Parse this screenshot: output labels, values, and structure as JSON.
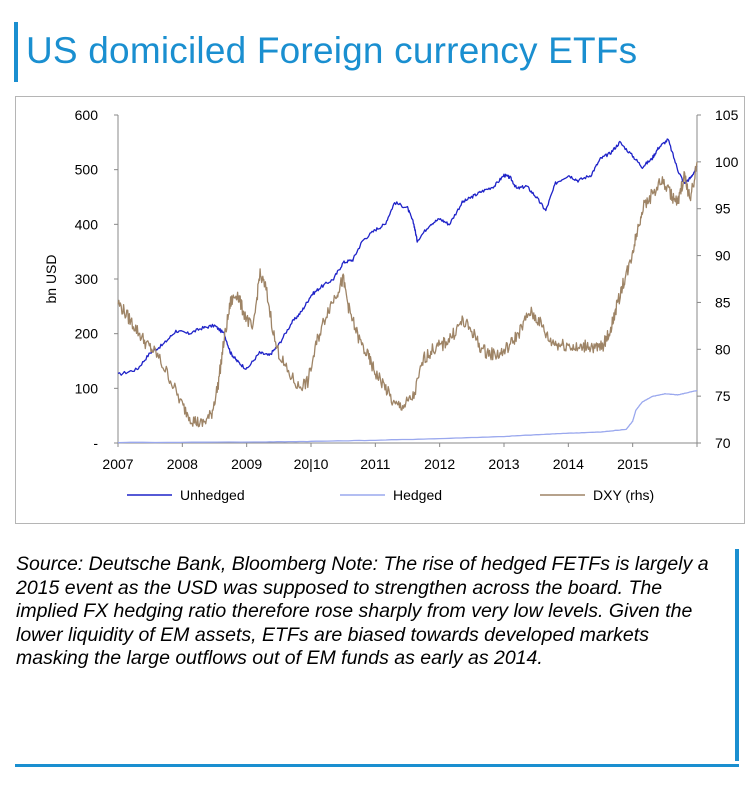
{
  "title": "US domiciled Foreign currency ETFs",
  "note": "Source: Deutsche Bank, Bloomberg Note: The rise of hedged FETFs is largely a 2015 event as the USD was supposed to strengthen across the board. The implied FX hedging ratio therefore rose sharply from very low levels. Given the lower liquidity of EM assets, ETFs are biased towards developed markets masking the large outflows out of EM funds as early as 2014.",
  "colors": {
    "accent": "#1a8fd0",
    "unhedged": "#1f23c8",
    "hedged": "#9aa8ee",
    "dxy": "#9e8466"
  },
  "chart_data": {
    "type": "line",
    "ylabel": "bn USD",
    "y_ticks": [
      "-",
      "100",
      "200",
      "300",
      "400",
      "500",
      "600"
    ],
    "ylim": [
      0,
      600
    ],
    "y2_ticks": [
      "70",
      "75",
      "80",
      "85",
      "90",
      "95",
      "100",
      "105"
    ],
    "y2lim": [
      70,
      105
    ],
    "x_ticks": [
      "2007",
      "2008",
      "2009",
      "20|10",
      "2011",
      "2012",
      "2013",
      "2014",
      "2015"
    ],
    "xlim": [
      2007.0,
      2016.0
    ],
    "legend": [
      "Unhedged",
      "Hedged",
      "DXY (rhs)"
    ],
    "legend_position": "bottom",
    "grid": false,
    "series": [
      {
        "name": "Unhedged",
        "axis": "left",
        "x": [
          2007.0,
          2007.3,
          2007.5,
          2007.7,
          2007.9,
          2008.1,
          2008.3,
          2008.5,
          2008.65,
          2008.75,
          2008.85,
          2009.0,
          2009.2,
          2009.35,
          2009.5,
          2009.7,
          2009.85,
          2010.0,
          2010.15,
          2010.35,
          2010.5,
          2010.65,
          2010.8,
          2011.0,
          2011.15,
          2011.3,
          2011.5,
          2011.6,
          2011.65,
          2011.85,
          2012.0,
          2012.15,
          2012.35,
          2012.5,
          2012.65,
          2012.85,
          2013.0,
          2013.1,
          2013.2,
          2013.35,
          2013.5,
          2013.65,
          2013.8,
          2014.0,
          2014.15,
          2014.35,
          2014.5,
          2014.65,
          2014.8,
          2015.0,
          2015.15,
          2015.3,
          2015.4,
          2015.55,
          2015.7,
          2015.8,
          2015.9,
          2016.0
        ],
        "y": [
          125,
          135,
          165,
          180,
          205,
          200,
          210,
          215,
          200,
          165,
          150,
          135,
          165,
          160,
          180,
          220,
          240,
          270,
          285,
          300,
          330,
          335,
          370,
          390,
          400,
          440,
          430,
          400,
          370,
          400,
          410,
          400,
          440,
          450,
          460,
          470,
          490,
          485,
          465,
          470,
          450,
          425,
          475,
          490,
          480,
          490,
          520,
          530,
          550,
          525,
          505,
          520,
          540,
          555,
          500,
          475,
          485,
          505
        ]
      },
      {
        "name": "Hedged",
        "axis": "left",
        "x": [
          2007.0,
          2009.3,
          2010.0,
          2011.0,
          2012.0,
          2013.0,
          2013.5,
          2014.0,
          2014.5,
          2014.9,
          2015.0,
          2015.05,
          2015.15,
          2015.3,
          2015.5,
          2015.7,
          2015.85,
          2016.0
        ],
        "y": [
          1,
          2,
          3,
          5,
          8,
          12,
          15,
          18,
          20,
          25,
          40,
          60,
          75,
          85,
          90,
          88,
          92,
          96
        ]
      },
      {
        "name": "DXY (rhs)",
        "axis": "right",
        "x": [
          2007.0,
          2007.15,
          2007.3,
          2007.45,
          2007.6,
          2007.8,
          2008.0,
          2008.15,
          2008.3,
          2008.45,
          2008.55,
          2008.65,
          2008.75,
          2008.85,
          2008.95,
          2009.1,
          2009.2,
          2009.3,
          2009.45,
          2009.6,
          2009.8,
          2009.95,
          2010.1,
          2010.25,
          2010.4,
          2010.5,
          2010.6,
          2010.75,
          2010.9,
          2011.0,
          2011.15,
          2011.3,
          2011.45,
          2011.6,
          2011.75,
          2011.9,
          2012.05,
          2012.2,
          2012.35,
          2012.5,
          2012.65,
          2012.8,
          2012.95,
          2013.1,
          2013.25,
          2013.4,
          2013.55,
          2013.7,
          2013.85,
          2014.0,
          2014.15,
          2014.3,
          2014.45,
          2014.55,
          2014.65,
          2014.75,
          2014.85,
          2014.95,
          2015.05,
          2015.15,
          2015.3,
          2015.45,
          2015.6,
          2015.7,
          2015.8,
          2015.9,
          2016.0
        ],
        "y": [
          85,
          83.5,
          82,
          80.5,
          79.5,
          77,
          74,
          72.5,
          72,
          73,
          76,
          81,
          85,
          86,
          84,
          82,
          88,
          86.5,
          80.5,
          78,
          76,
          76.5,
          81,
          84,
          86,
          87.5,
          84,
          81,
          79,
          77.5,
          76,
          74,
          74,
          75,
          79,
          80,
          80.5,
          81.5,
          83,
          82,
          80,
          79.5,
          79.5,
          80.5,
          82,
          84,
          83,
          81,
          80.5,
          80.5,
          80,
          80.5,
          80,
          80.5,
          82,
          84.5,
          87,
          89,
          92,
          95,
          96.5,
          98,
          96.5,
          95.5,
          98.5,
          96,
          100
        ]
      }
    ]
  }
}
